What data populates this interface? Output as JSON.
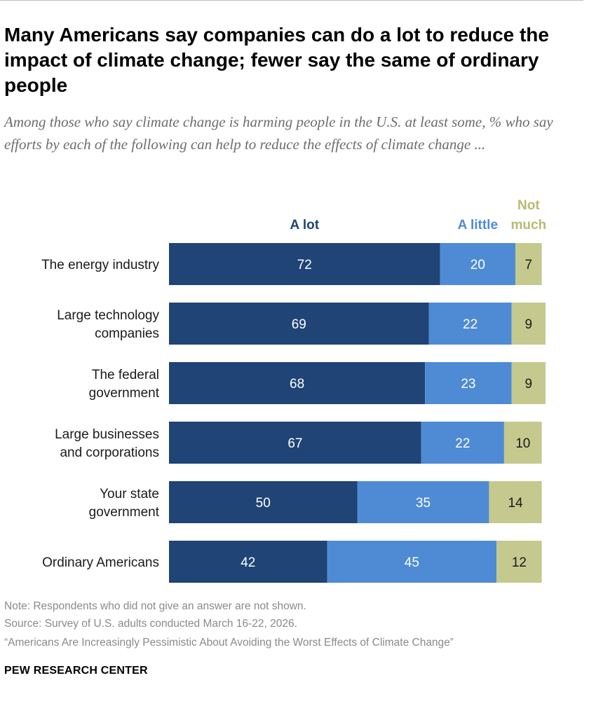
{
  "title": "Many Americans say companies can do a lot to reduce the impact of climate change; fewer say the same of ordinary people",
  "subtitle": "Among those who say climate change is harming people in the U.S. at least some, % who say efforts by each of the following can help to reduce the effects of climate change ...",
  "chart_data": {
    "type": "bar",
    "orientation": "horizontal",
    "stacked": true,
    "categories": [
      [
        "The energy industry"
      ],
      [
        "Large technology",
        "companies"
      ],
      [
        "The federal",
        "government"
      ],
      [
        "Large businesses",
        "and corporations"
      ],
      [
        "Your state",
        "government"
      ],
      [
        "Ordinary Americans"
      ]
    ],
    "series": [
      {
        "name": "A lot",
        "name_lines": [
          "A lot"
        ],
        "color": "#1f4475",
        "label_color": "#1f4475",
        "value_text_color": "#ffffff",
        "values": [
          72,
          69,
          68,
          67,
          50,
          42
        ]
      },
      {
        "name": "A little",
        "name_lines": [
          "A little"
        ],
        "color": "#4f8bd5",
        "label_color": "#4f8bd5",
        "value_text_color": "#ffffff",
        "values": [
          20,
          22,
          23,
          22,
          35,
          45
        ]
      },
      {
        "name": "Not much",
        "name_lines": [
          "Not",
          "much"
        ],
        "color": "#c5c98e",
        "label_color": "#b6bb72",
        "value_text_color": "#1a1a1a",
        "values": [
          7,
          9,
          9,
          10,
          14,
          12
        ]
      }
    ],
    "xlim": [
      0,
      100
    ],
    "grid": false,
    "legend": "top"
  },
  "footer": {
    "note": "Note: Respondents who did not give an answer are not shown.",
    "source": "Source: Survey of U.S. adults conducted March 16-22, 2026.",
    "report": "“Americans Are Increasingly Pessimistic About Avoiding the Worst Effects of Climate Change”"
  },
  "brand": "PEW RESEARCH CENTER"
}
